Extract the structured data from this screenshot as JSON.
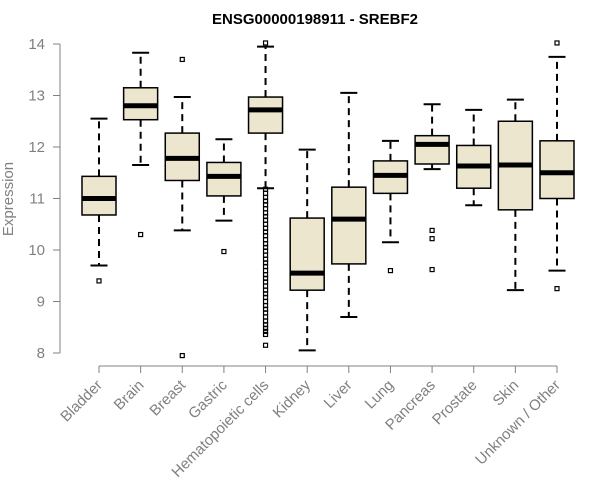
{
  "chart_data": {
    "type": "boxplot",
    "title": "ENSG00000198911 - SREBF2",
    "xlabel": "",
    "ylabel": "Expression",
    "ylim": [
      8,
      14
    ],
    "yticks": [
      8,
      9,
      10,
      11,
      12,
      13,
      14
    ],
    "categories": [
      "Bladder",
      "Brain",
      "Breast",
      "Gastric",
      "Hematopoietic cells",
      "Kidney",
      "Liver",
      "Lung",
      "Pancreas",
      "Prostate",
      "Skin",
      "Unknown / Other"
    ],
    "boxes": [
      {
        "name": "Bladder",
        "q1": 10.68,
        "median": 11.0,
        "q3": 11.43,
        "whisker_low": 9.7,
        "whisker_high": 12.55,
        "outliers": [
          9.4
        ]
      },
      {
        "name": "Brain",
        "q1": 12.53,
        "median": 12.8,
        "q3": 13.15,
        "whisker_low": 11.65,
        "whisker_high": 13.83,
        "outliers": [
          10.3
        ]
      },
      {
        "name": "Breast",
        "q1": 11.35,
        "median": 11.78,
        "q3": 12.27,
        "whisker_low": 10.38,
        "whisker_high": 12.97,
        "outliers": [
          13.7,
          7.95
        ]
      },
      {
        "name": "Gastric",
        "q1": 11.05,
        "median": 11.43,
        "q3": 11.7,
        "whisker_low": 10.57,
        "whisker_high": 12.15,
        "outliers": [
          9.97
        ]
      },
      {
        "name": "Hematopoietic cells",
        "q1": 12.27,
        "median": 12.72,
        "q3": 12.97,
        "whisker_low": 11.2,
        "whisker_high": 13.95,
        "outliers": [
          14.02,
          11.18,
          11.1,
          11.02,
          10.95,
          10.88,
          10.8,
          10.72,
          10.65,
          10.58,
          10.5,
          10.42,
          10.35,
          10.28,
          10.2,
          10.12,
          10.05,
          9.98,
          9.9,
          9.82,
          9.75,
          9.68,
          9.6,
          9.52,
          9.45,
          9.38,
          9.3,
          9.22,
          9.15,
          9.08,
          9.0,
          8.92,
          8.85,
          8.78,
          8.7,
          8.62,
          8.55,
          8.48,
          8.42,
          8.36,
          8.15
        ]
      },
      {
        "name": "Kidney",
        "q1": 9.22,
        "median": 9.55,
        "q3": 10.62,
        "whisker_low": 8.05,
        "whisker_high": 11.95,
        "outliers": []
      },
      {
        "name": "Liver",
        "q1": 9.73,
        "median": 10.6,
        "q3": 11.22,
        "whisker_low": 8.7,
        "whisker_high": 13.05,
        "outliers": []
      },
      {
        "name": "Lung",
        "q1": 11.1,
        "median": 11.45,
        "q3": 11.73,
        "whisker_low": 10.15,
        "whisker_high": 12.12,
        "outliers": [
          9.6
        ]
      },
      {
        "name": "Pancreas",
        "q1": 11.67,
        "median": 12.05,
        "q3": 12.22,
        "whisker_low": 11.57,
        "whisker_high": 12.83,
        "outliers": [
          10.38,
          10.22,
          9.62
        ]
      },
      {
        "name": "Prostate",
        "q1": 11.2,
        "median": 11.63,
        "q3": 12.03,
        "whisker_low": 10.87,
        "whisker_high": 12.72,
        "outliers": []
      },
      {
        "name": "Skin",
        "q1": 10.78,
        "median": 11.65,
        "q3": 12.5,
        "whisker_low": 9.22,
        "whisker_high": 12.92,
        "outliers": []
      },
      {
        "name": "Unknown / Other",
        "q1": 11.0,
        "median": 11.5,
        "q3": 12.12,
        "whisker_low": 9.6,
        "whisker_high": 13.75,
        "outliers": [
          14.02,
          9.25
        ]
      }
    ],
    "box_fill": "#ede6cf",
    "box_stroke": "#000000",
    "axis_color": "#808080"
  }
}
